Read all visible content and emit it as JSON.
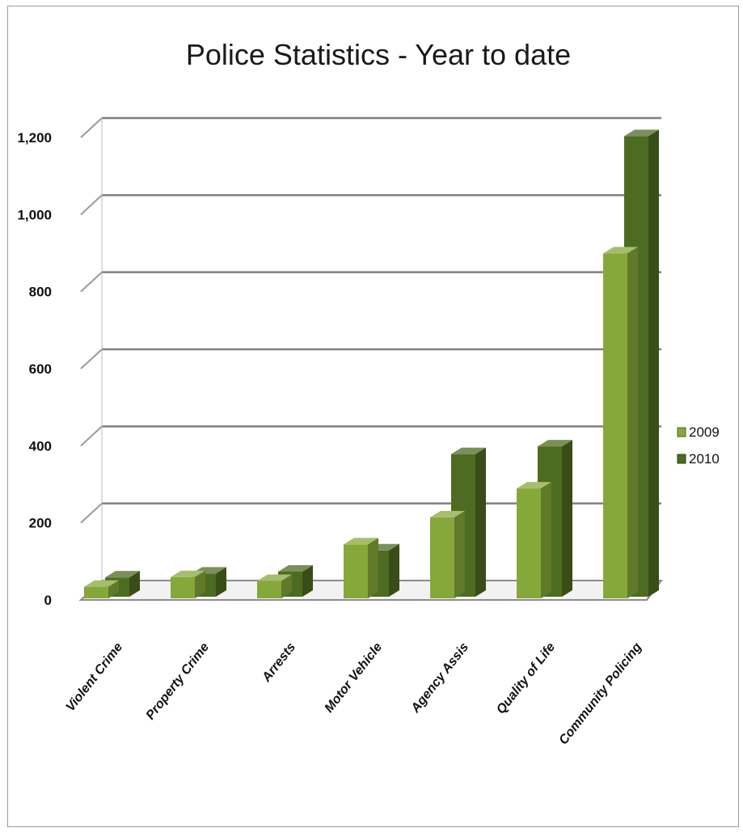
{
  "chart_data": {
    "type": "bar",
    "title": "Police Statistics - Year to date",
    "categories": [
      "Violent Crime",
      "Property Crime",
      "Arrests",
      "Motor Vehicle",
      "Agency Assis",
      "Quality of Life",
      "Community Policing"
    ],
    "series": [
      {
        "name": "2009",
        "values": [
          30,
          55,
          45,
          140,
          210,
          285,
          895
        ],
        "color": "#86a83a"
      },
      {
        "name": "2010",
        "values": [
          50,
          60,
          65,
          120,
          370,
          390,
          1195
        ],
        "color": "#4e6b22"
      }
    ],
    "ylim": [
      0,
      1200
    ],
    "yticks": [
      0,
      200,
      400,
      600,
      800,
      1000,
      1200
    ],
    "ytick_labels": [
      "0",
      "200",
      "400",
      "600",
      "800",
      "1,000",
      "1,200"
    ],
    "grid": true,
    "legend_position": "right"
  }
}
